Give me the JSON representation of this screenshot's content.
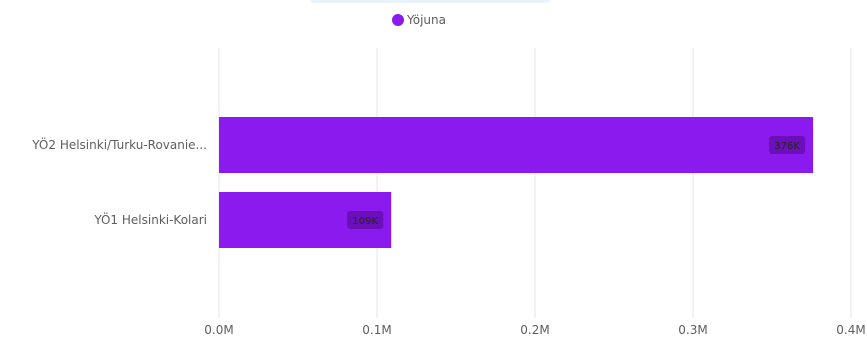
{
  "chart_data": {
    "type": "bar",
    "orientation": "horizontal",
    "categories": [
      "YÖ2 Helsinki/Turku-Rovanie...",
      "YÖ1 Helsinki-Kolari"
    ],
    "series": [
      {
        "name": "Yöjuna",
        "values": [
          376000,
          109000
        ],
        "data_labels": [
          "376K",
          "109K"
        ]
      }
    ],
    "xlim": [
      0,
      400000
    ],
    "x_ticks": [
      {
        "value": 0,
        "label": "0.0M"
      },
      {
        "value": 100000,
        "label": "0.1M"
      },
      {
        "value": 200000,
        "label": "0.2M"
      },
      {
        "value": 300000,
        "label": "0.3M"
      },
      {
        "value": 400000,
        "label": "0.4M"
      }
    ],
    "grid": true,
    "legend_position": "top-center",
    "colors": {
      "bar": "#8a1aee",
      "grid": "#e6e6e6",
      "label_bg": "#e6e6e6",
      "label_bg_inside": "#6b0fb8"
    }
  }
}
